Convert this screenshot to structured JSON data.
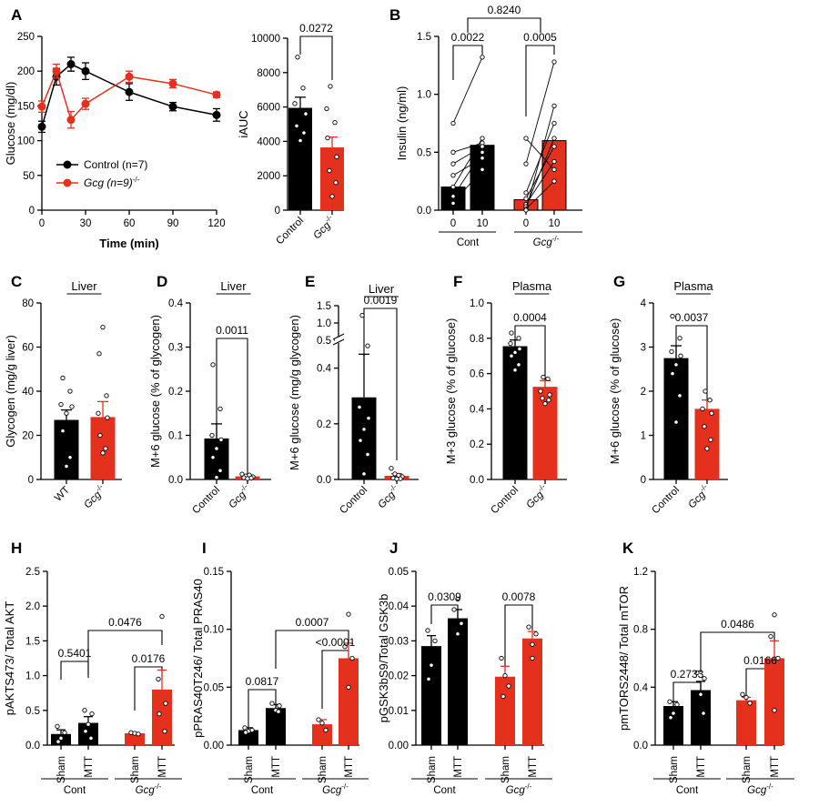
{
  "colors": {
    "control": "#000000",
    "gcg": "#e3311d"
  },
  "panels": [
    {
      "id": "A1",
      "label": "A",
      "type": "line",
      "ylabel": "Glucose (mg/dl)",
      "xlabel": "Time (min)",
      "yticks": [
        "0",
        "50",
        "100",
        "150",
        "200",
        "250"
      ],
      "xticks": [
        "0",
        "30",
        "60",
        "90",
        "120"
      ],
      "legend": [
        "Control (n=7)",
        "Gcg-/- (n=9)"
      ]
    },
    {
      "id": "A2",
      "type": "bar",
      "ylabel": "iAUC",
      "yticks": [
        "0",
        "2000",
        "4000",
        "6000",
        "8000",
        "10000"
      ],
      "categories": [
        "Control",
        "Gcg-/-"
      ],
      "pvalues": [
        "0.0272"
      ]
    },
    {
      "id": "B",
      "label": "B",
      "type": "paired-bar",
      "ylabel": "Insulin (ng/ml)",
      "yticks": [
        "0.0",
        "0.5",
        "1.0",
        "1.5"
      ],
      "xticks": [
        "0",
        "10",
        "0",
        "10"
      ],
      "groups": [
        "Cont",
        "Gcg-/-"
      ],
      "pvalues": [
        "0.0022",
        "0.0005",
        "0.8240"
      ]
    },
    {
      "id": "C",
      "label": "C",
      "type": "bar",
      "title": "Liver",
      "ylabel": "Glycogen (mg/g liver)",
      "yticks": [
        "0",
        "20",
        "40",
        "60",
        "80"
      ],
      "categories": [
        "WT",
        "Gcg-/-"
      ]
    },
    {
      "id": "D",
      "label": "D",
      "type": "bar",
      "title": "Liver",
      "ylabel": "M+6 glucose (% of glycogen)",
      "yticks": [
        "0.0",
        "0.1",
        "0.2",
        "0.3",
        "0.4"
      ],
      "categories": [
        "Control",
        "Gcg-/-"
      ],
      "pvalues": [
        "0.0011"
      ]
    },
    {
      "id": "E",
      "label": "E",
      "type": "bar",
      "title": "Liver",
      "ylabel": "M+6 glucose (mg/g glycogen)",
      "yticks": [
        "0.0",
        "0.2",
        "0.4",
        "0.5",
        "1.0",
        "1.5"
      ],
      "categories": [
        "Control",
        "Gcg-/-"
      ],
      "pvalues": [
        "0.0019"
      ]
    },
    {
      "id": "F",
      "label": "F",
      "type": "bar",
      "title": "Plasma",
      "ylabel": "M+3 glucose (% of glucose)",
      "yticks": [
        "0.0",
        "0.2",
        "0.4",
        "0.6",
        "0.8",
        "1.0"
      ],
      "categories": [
        "Control",
        "Gcg-/-"
      ],
      "pvalues": [
        "0.0004"
      ]
    },
    {
      "id": "G",
      "label": "G",
      "type": "bar",
      "title": "Plasma",
      "ylabel": "M+6 glucose (% of glucose)",
      "yticks": [
        "0",
        "1",
        "2",
        "3",
        "4"
      ],
      "categories": [
        "Control",
        "Gcg-/-"
      ],
      "pvalues": [
        "0.0037"
      ]
    },
    {
      "id": "H",
      "label": "H",
      "type": "grouped-bar",
      "ylabel": "pAKTS473/ Total AKT",
      "yticks": [
        "0.0",
        "0.5",
        "1.0",
        "1.5",
        "2.0",
        "2.5"
      ],
      "xticks": [
        "Sham",
        "MTT",
        "Sham",
        "MTT"
      ],
      "groups": [
        "Cont",
        "Gcg-/-"
      ],
      "pvalues": [
        "0.5401",
        "0.0176",
        "0.0476"
      ]
    },
    {
      "id": "I",
      "label": "I",
      "type": "grouped-bar",
      "ylabel": "pPRAS40T246/ Total PRAS40",
      "yticks": [
        "0.00",
        "0.05",
        "0.10",
        "0.15"
      ],
      "xticks": [
        "Sham",
        "MTT",
        "Sham",
        "MTT"
      ],
      "groups": [
        "Cont",
        "Gcg-/-"
      ],
      "pvalues": [
        "0.0817",
        "<0.0001",
        "0.0007"
      ]
    },
    {
      "id": "J",
      "label": "J",
      "type": "grouped-bar",
      "ylabel": "pGSK3bS9/Total GSK3b",
      "yticks": [
        "0.00",
        "0.01",
        "0.02",
        "0.03",
        "0.04",
        "0.05"
      ],
      "xticks": [
        "Sham",
        "MTT",
        "Sham",
        "MTT"
      ],
      "groups": [
        "Cont",
        "Gcg-/-"
      ],
      "pvalues": [
        "0.0309",
        "0.0078"
      ]
    },
    {
      "id": "K",
      "label": "K",
      "type": "grouped-bar",
      "ylabel": "pmTORS2448/ Total mTOR",
      "yticks": [
        "0.0",
        "0.4",
        "0.8",
        "1.2"
      ],
      "xticks": [
        "Sham",
        "MTT",
        "Sham",
        "MTT"
      ],
      "groups": [
        "Cont",
        "Gcg-/-"
      ],
      "pvalues": [
        "0.2733",
        "0.0166",
        "0.0486"
      ]
    }
  ],
  "chart_data": [
    {
      "panel": "A",
      "type": "line",
      "xlabel": "Time (min)",
      "ylabel": "Glucose (mg/dl)",
      "ylim": [
        0,
        250
      ],
      "xlim": [
        0,
        120
      ],
      "x": [
        0,
        10,
        20,
        30,
        60,
        90,
        120
      ],
      "series": [
        {
          "name": "Control (n=7)",
          "values": [
            120,
            192,
            210,
            200,
            170,
            149,
            137
          ],
          "errors": [
            8,
            12,
            10,
            12,
            12,
            6,
            9
          ]
        },
        {
          "name": "Gcg-/- (n=9)",
          "values": [
            149,
            200,
            130,
            153,
            192,
            182,
            166
          ],
          "errors": [
            8,
            10,
            12,
            8,
            8,
            6,
            4
          ]
        }
      ]
    },
    {
      "panel": "A-inset",
      "type": "bar",
      "ylabel": "iAUC",
      "ylim": [
        0,
        10000
      ],
      "categories": [
        "Control",
        "Gcg-/-"
      ],
      "values": [
        5950,
        3650
      ],
      "errors": [
        620,
        600
      ]
    },
    {
      "panel": "B",
      "type": "bar",
      "ylabel": "Insulin (ng/ml)",
      "ylim": [
        0,
        1.5
      ],
      "categories": [
        "Cont 0",
        "Cont 10",
        "Gcg-/- 0",
        "Gcg-/- 10"
      ],
      "values": [
        0.2,
        0.56,
        0.09,
        0.6
      ]
    },
    {
      "panel": "C",
      "type": "bar",
      "ylabel": "Glycogen (mg/g liver)",
      "ylim": [
        0,
        80
      ],
      "categories": [
        "WT",
        "Gcg-/-"
      ],
      "values": [
        27,
        28.3
      ],
      "errors": [
        4.5,
        7
      ]
    },
    {
      "panel": "D",
      "type": "bar",
      "ylabel": "M+6 glucose (% of glycogen)",
      "ylim": [
        0,
        0.4
      ],
      "categories": [
        "Control",
        "Gcg-/-"
      ],
      "values": [
        0.093,
        0.007
      ],
      "errors": [
        0.033,
        0.003
      ]
    },
    {
      "panel": "E",
      "type": "bar",
      "ylabel": "M+6 glucose (mg/g glycogen)",
      "ylim": [
        0,
        1.5
      ],
      "categories": [
        "Control",
        "Gcg-/-"
      ],
      "values": [
        0.295,
        0.013
      ],
      "errors": [
        0.155,
        0.008
      ]
    },
    {
      "panel": "F",
      "type": "bar",
      "ylabel": "M+3 glucose (% of glucose)",
      "ylim": [
        0,
        1.0
      ],
      "categories": [
        "Control",
        "Gcg-/-"
      ],
      "values": [
        0.755,
        0.525
      ],
      "errors": [
        0.035,
        0.035
      ]
    },
    {
      "panel": "G",
      "type": "bar",
      "ylabel": "M+6 glucose (% of glucose)",
      "ylim": [
        0,
        4
      ],
      "categories": [
        "Control",
        "Gcg-/-"
      ],
      "values": [
        2.75,
        1.6
      ],
      "errors": [
        0.28,
        0.2
      ]
    },
    {
      "panel": "H",
      "type": "bar",
      "ylabel": "pAKTS473/ Total AKT",
      "ylim": [
        0,
        2.5
      ],
      "categories": [
        "Cont Sham",
        "Cont MTT",
        "Gcg-/- Sham",
        "Gcg-/- MTT"
      ],
      "values": [
        0.16,
        0.32,
        0.17,
        0.8
      ],
      "errors": [
        0.06,
        0.09,
        0.01,
        0.28
      ]
    },
    {
      "panel": "I",
      "type": "bar",
      "ylabel": "pPRAS40T246/ Total PRAS40",
      "ylim": [
        0,
        0.15
      ],
      "categories": [
        "Cont Sham",
        "Cont MTT",
        "Gcg-/- Sham",
        "Gcg-/- MTT"
      ],
      "values": [
        0.013,
        0.032,
        0.018,
        0.075
      ],
      "errors": [
        0.002,
        0.003,
        0.004,
        0.013
      ]
    },
    {
      "panel": "J",
      "type": "bar",
      "ylabel": "pGSK3bS9/Total GSK3b",
      "ylim": [
        0,
        0.05
      ],
      "categories": [
        "Cont Sham",
        "Cont MTT",
        "Gcg-/- Sham",
        "Gcg-/- MTT"
      ],
      "values": [
        0.0285,
        0.0365,
        0.0197,
        0.0307
      ],
      "errors": [
        0.003,
        0.0025,
        0.003,
        0.002
      ]
    },
    {
      "panel": "K",
      "type": "bar",
      "ylabel": "pmTORS2448/ Total mTOR",
      "ylim": [
        0,
        1.2
      ],
      "categories": [
        "Cont Sham",
        "Cont MTT",
        "Gcg-/- Sham",
        "Gcg-/- MTT"
      ],
      "values": [
        0.27,
        0.38,
        0.31,
        0.6
      ],
      "errors": [
        0.03,
        0.06,
        0.02,
        0.12
      ]
    }
  ]
}
